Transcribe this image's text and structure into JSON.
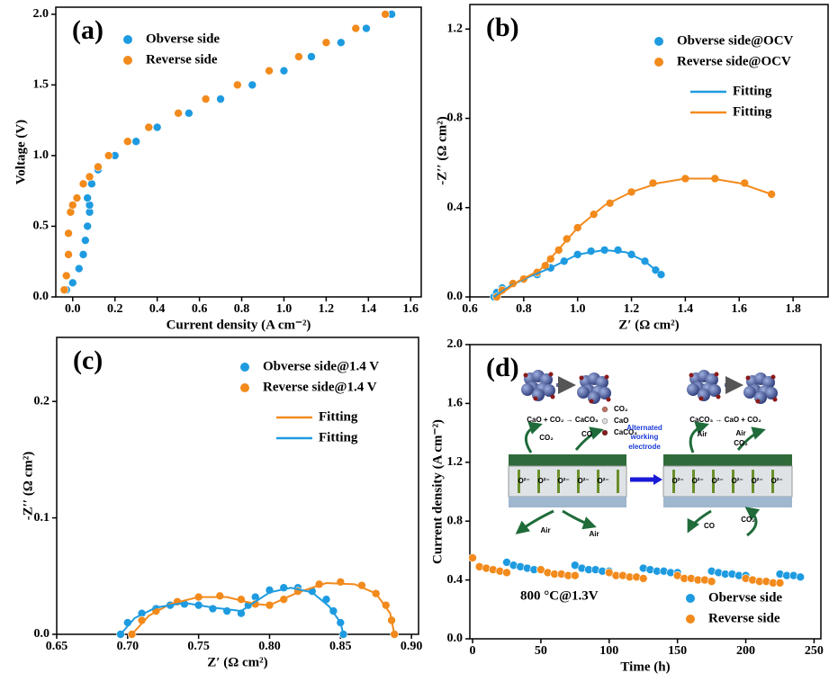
{
  "chart_data": [
    {
      "type": "scatter",
      "panel_label": "(a)",
      "x_label": "Current density (A cm⁻²)",
      "y_label": "Voltage (V)",
      "xlim": [
        -0.08,
        1.65
      ],
      "ylim": [
        0,
        2.05
      ],
      "xticks": [
        {
          "value": 0,
          "label": "0.0"
        },
        0.2,
        0.4,
        0.6,
        0.8,
        {
          "value": 1,
          "label": "1.0"
        },
        1.2,
        1.4,
        1.6
      ],
      "yticks": [
        {
          "value": 0,
          "label": "0.0"
        },
        0.5,
        {
          "value": 1,
          "label": "1.0"
        },
        1.5,
        {
          "value": 2,
          "label": "2.0"
        }
      ],
      "legend": "upper left",
      "series": [
        {
          "name": "Obverse side",
          "color": "#1e9be0",
          "mode": "markers",
          "x": [
            -0.03,
            0.0,
            0.03,
            0.05,
            0.06,
            0.07,
            0.08,
            0.08,
            0.07,
            0.09,
            0.12,
            0.2,
            0.3,
            0.4,
            0.55,
            0.7,
            0.85,
            1.0,
            1.13,
            1.27,
            1.39,
            1.51
          ],
          "values": [
            0.05,
            0.1,
            0.2,
            0.3,
            0.4,
            0.5,
            0.6,
            0.65,
            0.7,
            0.8,
            0.9,
            1.0,
            1.1,
            1.2,
            1.3,
            1.4,
            1.5,
            1.6,
            1.7,
            1.8,
            1.9,
            2.0
          ]
        },
        {
          "name": "Reverse side",
          "color": "#f28a1c",
          "mode": "markers",
          "x": [
            -0.04,
            -0.03,
            -0.02,
            -0.02,
            -0.01,
            0.0,
            0.02,
            0.05,
            0.08,
            0.12,
            0.17,
            0.26,
            0.36,
            0.5,
            0.63,
            0.78,
            0.93,
            1.07,
            1.2,
            1.34,
            1.48
          ],
          "values": [
            0.05,
            0.15,
            0.3,
            0.45,
            0.6,
            0.65,
            0.7,
            0.8,
            0.85,
            0.92,
            1.0,
            1.1,
            1.2,
            1.3,
            1.4,
            1.5,
            1.6,
            1.7,
            1.8,
            1.9,
            2.0
          ]
        }
      ]
    },
    {
      "type": "scatter",
      "panel_label": "(b)",
      "x_label": "Z′ (Ω cm²)",
      "y_label": "-Z′′ (Ω cm²)",
      "xlim": [
        0.6,
        1.93
      ],
      "ylim": [
        0,
        1.31
      ],
      "xticks": [
        0.6,
        0.8,
        {
          "value": 1,
          "label": "1.0"
        },
        1.2,
        1.4,
        1.6,
        1.8
      ],
      "yticks": [
        {
          "value": 0,
          "label": "0.0"
        },
        0.4,
        0.8,
        1.2
      ],
      "legend": "upper right",
      "series": [
        {
          "name": "Obverse side@OCV",
          "color": "#1e9be0",
          "mode": "markers",
          "x": [
            0.69,
            0.7,
            0.72,
            0.76,
            0.8,
            0.85,
            0.9,
            0.95,
            1.0,
            1.05,
            1.1,
            1.15,
            1.2,
            1.25,
            1.29,
            1.31
          ],
          "values": [
            0.0,
            0.02,
            0.04,
            0.06,
            0.08,
            0.1,
            0.13,
            0.16,
            0.19,
            0.205,
            0.21,
            0.21,
            0.19,
            0.16,
            0.12,
            0.1
          ]
        },
        {
          "name": "Reverse side@OCV",
          "color": "#f28a1c",
          "mode": "markers",
          "x": [
            0.7,
            0.72,
            0.76,
            0.8,
            0.85,
            0.88,
            0.9,
            0.93,
            0.96,
            1.0,
            1.06,
            1.12,
            1.2,
            1.28,
            1.4,
            1.51,
            1.62,
            1.72
          ],
          "values": [
            0.0,
            0.03,
            0.06,
            0.08,
            0.11,
            0.14,
            0.17,
            0.21,
            0.26,
            0.31,
            0.37,
            0.42,
            0.47,
            0.51,
            0.53,
            0.53,
            0.51,
            0.46
          ]
        },
        {
          "name": "Fitting",
          "color": "#1e9be0",
          "mode": "line",
          "x": [
            0.69,
            0.75,
            0.82,
            0.9,
            1.0,
            1.1,
            1.18,
            1.25,
            1.31
          ],
          "values": [
            0.0,
            0.05,
            0.09,
            0.13,
            0.19,
            0.21,
            0.2,
            0.16,
            0.1
          ]
        },
        {
          "name": "Fitting",
          "color": "#f28a1c",
          "mode": "line",
          "x": [
            0.7,
            0.78,
            0.86,
            0.92,
            1.0,
            1.1,
            1.2,
            1.3,
            1.4,
            1.5,
            1.6,
            1.72
          ],
          "values": [
            0.0,
            0.07,
            0.12,
            0.2,
            0.31,
            0.41,
            0.47,
            0.51,
            0.53,
            0.53,
            0.51,
            0.46
          ]
        }
      ]
    },
    {
      "type": "scatter",
      "panel_label": "(c)",
      "x_label": "Z′ (Ω cm²)",
      "y_label": "-Z′′ (Ω cm²)",
      "xlim": [
        0.65,
        0.905
      ],
      "ylim": [
        0,
        0.255
      ],
      "xticks": [
        0.65,
        {
          "value": 0.7,
          "label": "0.70"
        },
        0.75,
        {
          "value": 0.8,
          "label": "0.80"
        },
        0.85,
        {
          "value": 0.9,
          "label": "0.90"
        }
      ],
      "yticks": [
        {
          "value": 0,
          "label": "0.0"
        },
        0.1,
        0.2
      ],
      "legend": "upper center",
      "series": [
        {
          "name": "Obverse side@1.4 V",
          "color": "#1e9be0",
          "mode": "markers",
          "x": [
            0.695,
            0.7,
            0.71,
            0.72,
            0.73,
            0.74,
            0.75,
            0.76,
            0.77,
            0.78,
            0.785,
            0.79,
            0.8,
            0.81,
            0.82,
            0.83,
            0.84,
            0.845,
            0.85,
            0.852
          ],
          "values": [
            0.0,
            0.01,
            0.018,
            0.022,
            0.025,
            0.026,
            0.025,
            0.022,
            0.02,
            0.018,
            0.025,
            0.032,
            0.038,
            0.04,
            0.04,
            0.037,
            0.03,
            0.02,
            0.01,
            0.0
          ]
        },
        {
          "name": "Reverse side@1.4 V",
          "color": "#f28a1c",
          "mode": "markers",
          "x": [
            0.703,
            0.71,
            0.72,
            0.735,
            0.75,
            0.765,
            0.78,
            0.79,
            0.8,
            0.81,
            0.82,
            0.835,
            0.85,
            0.865,
            0.875,
            0.882,
            0.886,
            0.888
          ],
          "values": [
            0.0,
            0.012,
            0.02,
            0.028,
            0.032,
            0.033,
            0.03,
            0.026,
            0.025,
            0.03,
            0.037,
            0.043,
            0.045,
            0.042,
            0.035,
            0.025,
            0.012,
            0.0
          ]
        },
        {
          "name": "Fitting",
          "color": "#f28a1c",
          "mode": "line",
          "x": [
            0.703,
            0.715,
            0.73,
            0.75,
            0.77,
            0.79,
            0.8,
            0.82,
            0.84,
            0.86,
            0.875,
            0.885,
            0.888
          ],
          "values": [
            0.0,
            0.016,
            0.026,
            0.032,
            0.032,
            0.026,
            0.025,
            0.036,
            0.044,
            0.043,
            0.035,
            0.018,
            0.0
          ]
        },
        {
          "name": "Fitting",
          "color": "#1e9be0",
          "mode": "line",
          "x": [
            0.695,
            0.705,
            0.72,
            0.74,
            0.76,
            0.78,
            0.8,
            0.815,
            0.83,
            0.842,
            0.85,
            0.852
          ],
          "values": [
            0.0,
            0.014,
            0.023,
            0.027,
            0.023,
            0.02,
            0.036,
            0.04,
            0.036,
            0.024,
            0.01,
            0.0
          ]
        }
      ]
    },
    {
      "type": "scatter",
      "panel_label": "(d)",
      "x_label": "Time (h)",
      "y_label": "Current density (A cm⁻²)",
      "xlim": [
        -2,
        255
      ],
      "ylim": [
        0,
        2.0
      ],
      "xticks": [
        0,
        50,
        100,
        150,
        200,
        250
      ],
      "yticks": [
        {
          "value": 0,
          "label": "0.0"
        },
        0.4,
        0.8,
        1.2,
        1.6,
        {
          "value": 2,
          "label": "2.0"
        }
      ],
      "legend": "lower right",
      "annotation": "800 °C@1.3V",
      "inset_labels": [
        "CO₂",
        "CaO",
        "CaCO₃",
        "CaO + CO₂ → CaCO₃",
        "CO₂",
        "CO",
        "Alternated",
        "working",
        "electrode",
        "CaCO₃ → CaO + CO₂",
        "Air",
        "Air",
        "CO₂",
        "Air",
        "Air",
        "CO",
        "CO₂",
        "O²⁻",
        "O²⁻",
        "O²⁻",
        "O²⁻",
        "O²⁻",
        "O²⁻",
        "O²⁻",
        "O²⁻",
        "O²⁻",
        "O²⁻",
        "O²⁻"
      ],
      "series": [
        {
          "name": "Obervse side",
          "color": "#1e9be0",
          "mode": "markers",
          "x": [
            25,
            30,
            35,
            40,
            45,
            50,
            75,
            80,
            85,
            90,
            95,
            100,
            125,
            130,
            135,
            140,
            145,
            150,
            175,
            180,
            185,
            190,
            195,
            200,
            225,
            230,
            235,
            240
          ],
          "values": [
            0.52,
            0.5,
            0.49,
            0.48,
            0.47,
            0.47,
            0.5,
            0.48,
            0.47,
            0.47,
            0.46,
            0.46,
            0.48,
            0.47,
            0.46,
            0.46,
            0.45,
            0.45,
            0.46,
            0.45,
            0.44,
            0.44,
            0.43,
            0.43,
            0.44,
            0.43,
            0.43,
            0.42
          ]
        },
        {
          "name": "Reverse side",
          "color": "#f28a1c",
          "mode": "markers",
          "x": [
            0,
            5,
            10,
            15,
            20,
            25,
            50,
            55,
            60,
            65,
            70,
            75,
            100,
            105,
            110,
            115,
            120,
            125,
            150,
            155,
            160,
            165,
            170,
            175,
            200,
            205,
            210,
            215,
            220,
            225
          ],
          "values": [
            0.55,
            0.49,
            0.48,
            0.47,
            0.46,
            0.45,
            0.47,
            0.45,
            0.44,
            0.44,
            0.43,
            0.43,
            0.45,
            0.43,
            0.43,
            0.42,
            0.42,
            0.41,
            0.43,
            0.41,
            0.41,
            0.4,
            0.4,
            0.39,
            0.41,
            0.4,
            0.39,
            0.39,
            0.38,
            0.38
          ]
        }
      ]
    }
  ]
}
